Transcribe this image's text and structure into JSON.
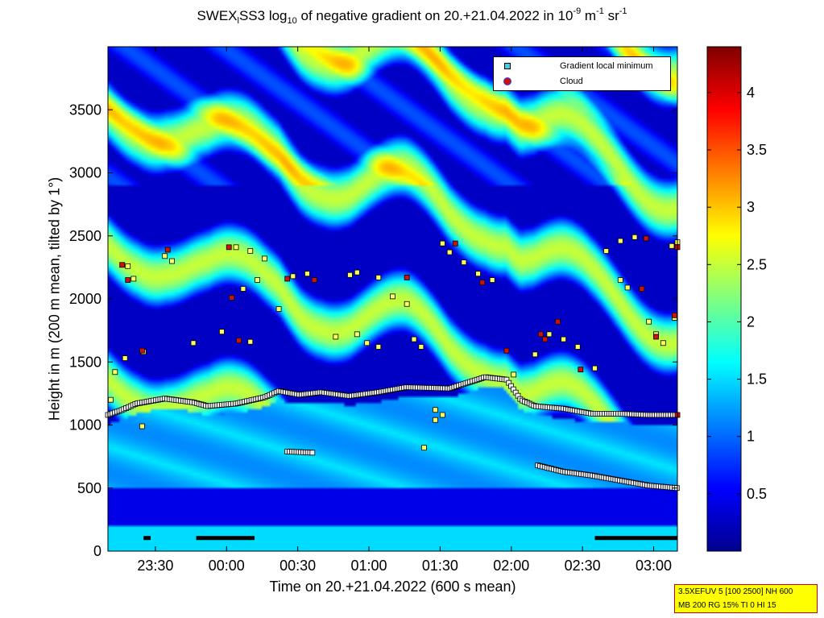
{
  "chart_data": {
    "type": "heatmap",
    "title_parts": {
      "a": "SWEX",
      "b": "l",
      "c": "SS3 log",
      "d": "10",
      "e": " of negative gradient on 20.+21.04.2022 in 10",
      "f": "-9",
      "g": " m",
      "h": "-1",
      "i": " sr",
      "j": "-1"
    },
    "xlabel": "Time on 20.+21.04.2022 (600 s mean)",
    "ylabel": "Height in m (200 m mean, tilted by 1°)",
    "x_range": [
      "23:10",
      "03:10"
    ],
    "x_ticks": [
      "23:30",
      "00:00",
      "00:30",
      "01:00",
      "01:30",
      "02:00",
      "02:30",
      "03:00"
    ],
    "ylim": [
      0,
      4000
    ],
    "y_ticks": [
      0,
      500,
      1000,
      1500,
      2000,
      2500,
      3000,
      3500
    ],
    "colorbar": {
      "range": [
        0,
        4.4
      ],
      "ticks": [
        "0.5",
        "1",
        "1.5",
        "2",
        "2.5",
        "3",
        "3.5",
        "4"
      ],
      "colormap": "jet"
    },
    "legend": {
      "position": "top-right",
      "entries": [
        {
          "label": "Gradient local minimum",
          "marker": "square",
          "color": "#40d0e0"
        },
        {
          "label": "Cloud",
          "marker": "circle",
          "color": "#d01010"
        }
      ]
    },
    "layer_lines": [
      {
        "name": "",
        "points": [
          [
            0,
            1080
          ],
          [
            10,
            1120
          ],
          [
            20,
            1170
          ],
          [
            40,
            1210
          ],
          [
            60,
            1180
          ],
          [
            70,
            1150
          ],
          [
            90,
            1170
          ],
          [
            110,
            1220
          ],
          [
            120,
            1270
          ],
          [
            135,
            1240
          ],
          [
            150,
            1260
          ],
          [
            170,
            1230
          ],
          [
            190,
            1260
          ],
          [
            210,
            1300
          ],
          [
            240,
            1290
          ],
          [
            265,
            1380
          ],
          [
            280,
            1360
          ],
          [
            290,
            1200
          ],
          [
            300,
            1150
          ],
          [
            320,
            1130
          ],
          [
            340,
            1090
          ],
          [
            360,
            1090
          ],
          [
            380,
            1080
          ],
          [
            400,
            1080
          ]
        ]
      },
      {
        "name": "",
        "points": [
          [
            302,
            680
          ],
          [
            320,
            630
          ],
          [
            340,
            600
          ],
          [
            360,
            560
          ],
          [
            380,
            520
          ],
          [
            400,
            500
          ]
        ]
      },
      {
        "name": "",
        "points": [
          [
            126,
            790
          ],
          [
            145,
            780
          ]
        ]
      }
    ],
    "scattered_minima": [
      [
        5,
        1420
      ],
      [
        12,
        1530
      ],
      [
        25,
        1580
      ],
      [
        14,
        2260
      ],
      [
        18,
        2160
      ],
      [
        40,
        2340
      ],
      [
        45,
        2300
      ],
      [
        90,
        2410
      ],
      [
        100,
        2380
      ],
      [
        110,
        2320
      ],
      [
        105,
        2150
      ],
      [
        95,
        2080
      ],
      [
        120,
        1920
      ],
      [
        130,
        2180
      ],
      [
        140,
        2200
      ],
      [
        170,
        2190
      ],
      [
        175,
        2210
      ],
      [
        190,
        2170
      ],
      [
        200,
        2020
      ],
      [
        210,
        1960
      ],
      [
        215,
        1680
      ],
      [
        220,
        1620
      ],
      [
        235,
        2440
      ],
      [
        240,
        2370
      ],
      [
        250,
        2290
      ],
      [
        260,
        2200
      ],
      [
        270,
        2150
      ],
      [
        285,
        1400
      ],
      [
        300,
        1560
      ],
      [
        310,
        1720
      ],
      [
        320,
        1680
      ],
      [
        330,
        1620
      ],
      [
        342,
        1450
      ],
      [
        350,
        2380
      ],
      [
        360,
        2460
      ],
      [
        370,
        2490
      ],
      [
        378,
        2480
      ],
      [
        360,
        2150
      ],
      [
        365,
        2090
      ],
      [
        380,
        1820
      ],
      [
        385,
        1720
      ],
      [
        390,
        1650
      ],
      [
        398,
        1850
      ],
      [
        396,
        2420
      ],
      [
        400,
        2450
      ],
      [
        160,
        1700
      ],
      [
        175,
        1720
      ],
      [
        182,
        1650
      ],
      [
        190,
        1620
      ],
      [
        60,
        1650
      ],
      [
        80,
        1740
      ],
      [
        100,
        1660
      ],
      [
        230,
        1040
      ],
      [
        235,
        1080
      ],
      [
        230,
        1120
      ],
      [
        222,
        820
      ],
      [
        24,
        990
      ],
      [
        2,
        1200
      ]
    ],
    "clouds": [
      [
        10,
        2270
      ],
      [
        14,
        2150
      ],
      [
        24,
        1590
      ],
      [
        42,
        2390
      ],
      [
        85,
        2410
      ],
      [
        87,
        2010
      ],
      [
        92,
        1670
      ],
      [
        126,
        2160
      ],
      [
        145,
        2150
      ],
      [
        210,
        2170
      ],
      [
        244,
        2440
      ],
      [
        263,
        2130
      ],
      [
        280,
        1590
      ],
      [
        304,
        1720
      ],
      [
        307,
        1680
      ],
      [
        316,
        1820
      ],
      [
        332,
        1440
      ],
      [
        378,
        2480
      ],
      [
        375,
        2080
      ],
      [
        385,
        1700
      ],
      [
        398,
        1870
      ],
      [
        400,
        2410
      ],
      [
        400,
        1080
      ]
    ],
    "bottom_band": [
      [
        25,
        30
      ],
      [
        62,
        103
      ],
      [
        342,
        400
      ]
    ],
    "infobox": [
      "3.5XEFUV 5 [100 2500] NH 600",
      "MB 200 RG 15% TI 0 HI 15"
    ]
  }
}
